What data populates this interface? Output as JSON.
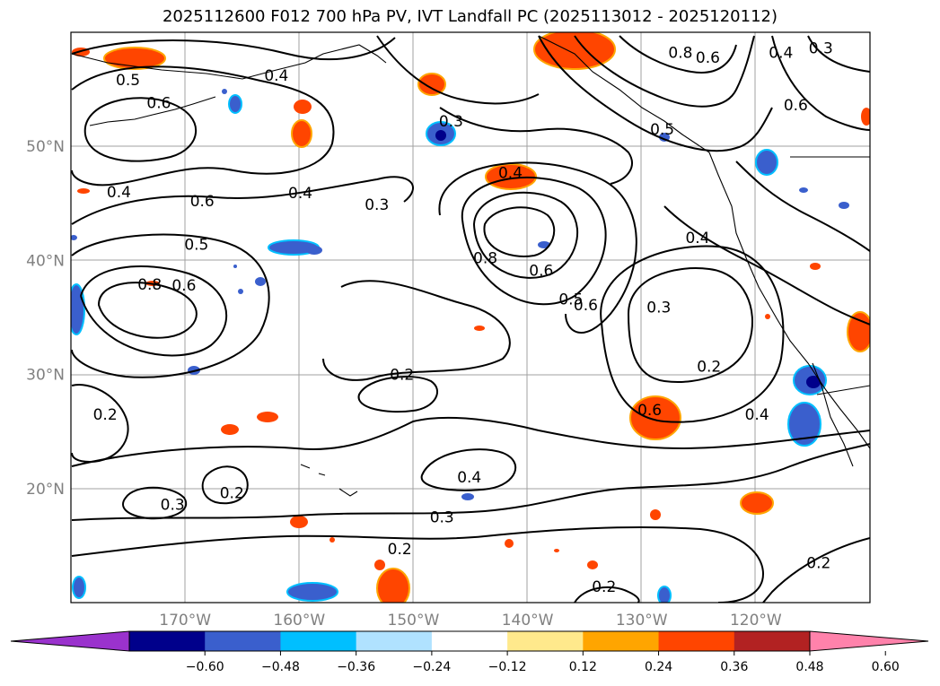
{
  "title": "2025112600 F012 700 hPa PV, IVT Landfall PC (2025113012 - 2025120112)",
  "map": {
    "lat_labels": [
      {
        "lat": 50,
        "label": "50°N"
      },
      {
        "lat": 40,
        "label": "40°N"
      },
      {
        "lat": 30,
        "label": "30°N"
      },
      {
        "lat": 20,
        "label": "20°N"
      }
    ],
    "lon_labels": [
      {
        "lon": -170,
        "label": "170°W"
      },
      {
        "lon": -160,
        "label": "160°W"
      },
      {
        "lon": -150,
        "label": "150°W"
      },
      {
        "lon": -140,
        "label": "140°W"
      },
      {
        "lon": -130,
        "label": "130°W"
      },
      {
        "lon": -120,
        "label": "120°W"
      }
    ],
    "extent": {
      "lon_min": -180,
      "lon_max": -110,
      "lat_min": 10,
      "lat_max": 60
    },
    "contour_labels": [
      {
        "text": "0.5",
        "lon": -175,
        "lat": 55.5
      },
      {
        "text": "0.6",
        "lon": -172.3,
        "lat": 53.5
      },
      {
        "text": "0.4",
        "lon": -162,
        "lat": 55.9
      },
      {
        "text": "0.4",
        "lon": -175.8,
        "lat": 45.7
      },
      {
        "text": "0.6",
        "lon": -168.5,
        "lat": 44.9
      },
      {
        "text": "0.4",
        "lon": -159.9,
        "lat": 45.6
      },
      {
        "text": "0.3",
        "lon": -153.2,
        "lat": 44.6
      },
      {
        "text": "0.5",
        "lon": -169,
        "lat": 41.1
      },
      {
        "text": "0.8",
        "lon": -173.1,
        "lat": 37.6
      },
      {
        "text": "0.6",
        "lon": -170.1,
        "lat": 37.5
      },
      {
        "text": "0.3",
        "lon": -146.7,
        "lat": 51.9
      },
      {
        "text": "0.4",
        "lon": -141.5,
        "lat": 47.4
      },
      {
        "text": "0.8",
        "lon": -143.7,
        "lat": 39.9
      },
      {
        "text": "0.6",
        "lon": -138.8,
        "lat": 38.8
      },
      {
        "text": "0.5",
        "lon": -136.2,
        "lat": 36.3
      },
      {
        "text": "0.6",
        "lon": -134.9,
        "lat": 35.8
      },
      {
        "text": "0.3",
        "lon": -128.5,
        "lat": 35.6
      },
      {
        "text": "0.2",
        "lon": -124.1,
        "lat": 30.4
      },
      {
        "text": "0.6",
        "lon": -129.3,
        "lat": 26.6
      },
      {
        "text": "0.4",
        "lon": -119.9,
        "lat": 26.2
      },
      {
        "text": "0.5",
        "lon": -128.2,
        "lat": 51.2
      },
      {
        "text": "0.8",
        "lon": -126.6,
        "lat": 57.9
      },
      {
        "text": "0.6",
        "lon": -124.2,
        "lat": 57.5
      },
      {
        "text": "0.4",
        "lon": -117.8,
        "lat": 57.9
      },
      {
        "text": "0.3",
        "lon": -114.3,
        "lat": 58.3
      },
      {
        "text": "0.6",
        "lon": -116.5,
        "lat": 53.3
      },
      {
        "text": "0.4",
        "lon": -125.1,
        "lat": 41.7
      },
      {
        "text": "0.2",
        "lon": -151,
        "lat": 29.7
      },
      {
        "text": "0.2",
        "lon": -177,
        "lat": 26.2
      },
      {
        "text": "0.3",
        "lon": -171.1,
        "lat": 18.3
      },
      {
        "text": "0.2",
        "lon": -165.9,
        "lat": 19.3
      },
      {
        "text": "0.4",
        "lon": -145.1,
        "lat": 20.7
      },
      {
        "text": "0.3",
        "lon": -147.5,
        "lat": 17.2
      },
      {
        "text": "0.2",
        "lon": -151.2,
        "lat": 14.4
      },
      {
        "text": "0.2",
        "lon": -133.3,
        "lat": 11.1
      },
      {
        "text": "0.2",
        "lon": -114.5,
        "lat": 13.2
      }
    ]
  },
  "colorbar": {
    "ticks": [
      "−0.60",
      "−0.48",
      "−0.36",
      "−0.24",
      "−0.12",
      "0.12",
      "0.24",
      "0.36",
      "0.48",
      "0.60"
    ],
    "colors": [
      "#9a32cd",
      "#00008b",
      "#3a5fcd",
      "#00bfff",
      "#b0e2ff",
      "#ffffff",
      "#ffe98c",
      "#ffa500",
      "#ff4500",
      "#b22222",
      "#ff82ab"
    ]
  }
}
